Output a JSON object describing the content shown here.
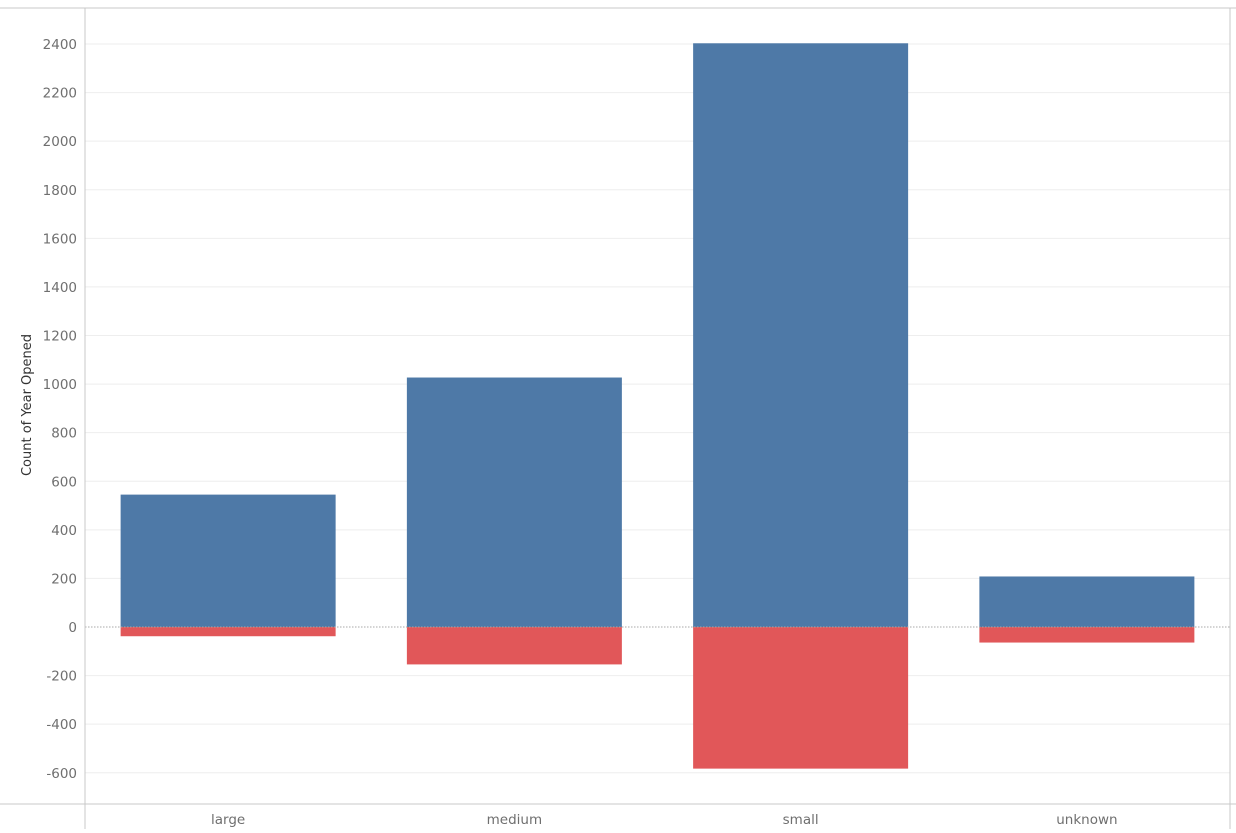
{
  "chart_data": {
    "type": "bar",
    "title": "",
    "xlabel": "",
    "ylabel": "Count of Year Opened",
    "categories": [
      "large",
      "medium",
      "small",
      "unknown"
    ],
    "series": [
      {
        "values": [
          545,
          1027,
          2403,
          208
        ]
      },
      {
        "values": [
          -38,
          -154,
          -583,
          -64
        ]
      }
    ],
    "ylim": [
      -700,
      2560
    ],
    "yticks": [
      -600,
      -400,
      -200,
      0,
      200,
      400,
      600,
      800,
      1000,
      1200,
      1400,
      1600,
      1800,
      2000,
      2200,
      2400
    ],
    "grid": true,
    "legend": "none",
    "colors": {
      "positive": "#4e79a7",
      "negative": "#e15759",
      "grid": "#eeeeee",
      "axis": "#c8c8c8",
      "zero_line": "#a8a8a8",
      "tick_text": "#6f6f6f",
      "title_text": "#333333"
    }
  }
}
